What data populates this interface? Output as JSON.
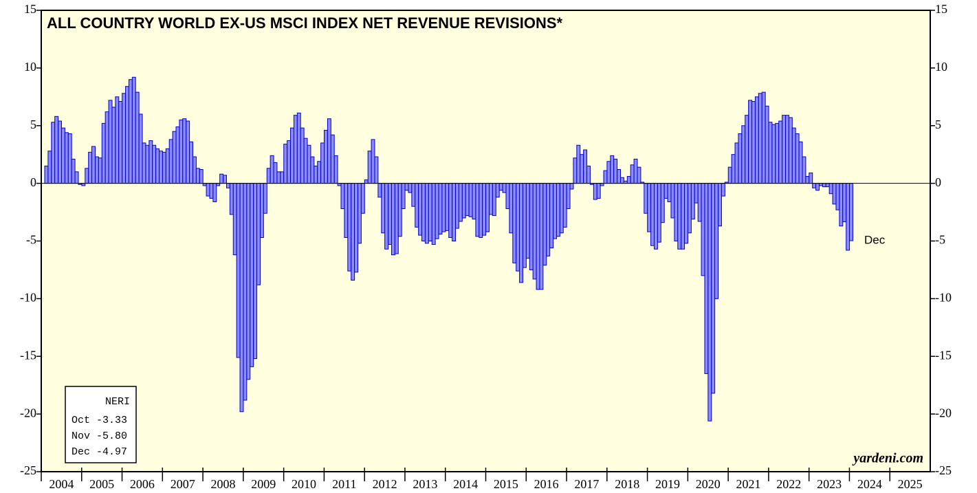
{
  "chart_data": {
    "type": "bar",
    "title": "ALL COUNTRY WORLD EX-US MSCI INDEX NET REVENUE REVISIONS*",
    "source": "yardeni.com",
    "annotation": "Dec",
    "legend_box": {
      "title": "NERI",
      "rows": [
        "Oct -3.33",
        "Nov -5.80",
        "Dec -4.97"
      ]
    },
    "years": [
      "2004",
      "2005",
      "2006",
      "2007",
      "2008",
      "2009",
      "2010",
      "2011",
      "2012",
      "2013",
      "2014",
      "2015",
      "2016",
      "2017",
      "2018",
      "2019",
      "2020",
      "2021",
      "2022",
      "2023",
      "2024",
      "2025"
    ],
    "values": [
      1.5,
      2.8,
      5.3,
      5.8,
      5.4,
      4.8,
      4.4,
      4.3,
      2.1,
      1.0,
      -0.1,
      -0.2,
      1.3,
      2.7,
      3.2,
      2.3,
      2.2,
      5.2,
      6.2,
      7.2,
      6.6,
      7.5,
      7.1,
      7.8,
      8.4,
      9.0,
      9.2,
      7.9,
      6.0,
      3.5,
      3.3,
      3.7,
      3.3,
      3.0,
      2.8,
      2.7,
      3.0,
      3.8,
      4.5,
      4.9,
      5.5,
      5.6,
      5.4,
      3.6,
      2.3,
      1.3,
      1.2,
      -0.2,
      -1.1,
      -1.3,
      -1.6,
      -0.2,
      0.8,
      0.7,
      -0.4,
      -2.7,
      -6.2,
      -15.1,
      -19.8,
      -18.8,
      -17.0,
      -15.9,
      -15.2,
      -8.8,
      -4.7,
      -2.6,
      1.3,
      2.4,
      1.8,
      1.0,
      1.0,
      3.4,
      3.7,
      4.8,
      5.9,
      6.1,
      4.8,
      3.9,
      3.3,
      2.3,
      1.5,
      1.9,
      3.5,
      4.6,
      5.6,
      4.2,
      2.4,
      -0.2,
      -2.2,
      -4.7,
      -7.6,
      -8.4,
      -7.7,
      -5.2,
      -2.6,
      0.3,
      2.8,
      3.8,
      2.3,
      -1.2,
      -4.3,
      -5.7,
      -5.3,
      -6.2,
      -6.1,
      -4.6,
      -2.2,
      -0.6,
      -0.8,
      -2.0,
      -3.8,
      -4.5,
      -5.0,
      -5.2,
      -5.0,
      -5.3,
      -4.8,
      -4.4,
      -4.2,
      -4.1,
      -4.7,
      -5.0,
      -3.9,
      -3.3,
      -3.0,
      -2.8,
      -2.9,
      -3.1,
      -4.6,
      -4.7,
      -4.5,
      -4.2,
      -2.7,
      -2.8,
      -1.2,
      -0.6,
      -0.8,
      -2.2,
      -4.3,
      -6.9,
      -7.6,
      -8.6,
      -7.3,
      -6.5,
      -7.5,
      -8.3,
      -9.2,
      -9.2,
      -7.1,
      -6.3,
      -5.6,
      -4.8,
      -4.6,
      -4.3,
      -3.8,
      -2.2,
      -0.5,
      2.2,
      3.3,
      2.5,
      2.9,
      1.5,
      -0.1,
      -1.4,
      -1.3,
      -0.2,
      1.1,
      1.9,
      2.4,
      2.1,
      1.2,
      0.5,
      0.2,
      0.6,
      1.6,
      2.1,
      1.4,
      0.1,
      -2.6,
      -4.2,
      -5.4,
      -5.7,
      -5.1,
      -3.4,
      -1.3,
      -1.6,
      -3.0,
      -5.0,
      -5.7,
      -5.7,
      -5.2,
      -4.3,
      -3.1,
      -1.7,
      -3.3,
      -8.0,
      -16.5,
      -20.6,
      -18.2,
      -10.0,
      -3.7,
      -1.1,
      0.1,
      1.4,
      2.5,
      3.5,
      4.3,
      5.0,
      5.9,
      7.2,
      7.1,
      7.5,
      7.8,
      7.9,
      6.7,
      5.3,
      5.1,
      5.2,
      5.4,
      5.9,
      5.9,
      5.7,
      4.8,
      4.3,
      3.6,
      2.3,
      0.6,
      0.9,
      -0.4,
      -0.6,
      -0.2,
      -0.3,
      -0.3,
      -0.9,
      -1.8,
      -2.3,
      -3.7,
      -3.33,
      -5.8,
      -4.97
    ],
    "color": "#8c8cff",
    "edge_color": "#0000cc",
    "background": "#ffffe0",
    "ylim": [
      -25,
      15
    ],
    "yticks": [
      -25,
      -20,
      -15,
      -10,
      -5,
      0,
      5,
      10,
      15
    ],
    "zero_line": true
  }
}
